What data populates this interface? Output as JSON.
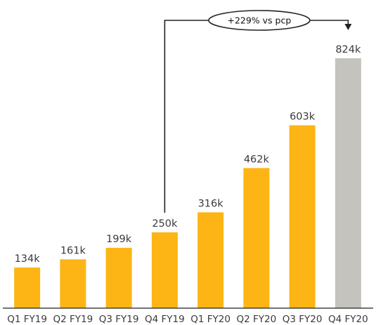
{
  "chart_data": {
    "type": "bar",
    "categories": [
      "Q1 FY19",
      "Q2 FY19",
      "Q3 FY19",
      "Q4 FY19",
      "Q1 FY20",
      "Q2 FY20",
      "Q3 FY20",
      "Q4 FY20"
    ],
    "values": [
      134,
      161,
      199,
      250,
      316,
      462,
      603,
      824
    ],
    "data_labels": [
      "134k",
      "161k",
      "199k",
      "250k",
      "316k",
      "462k",
      "603k",
      "824k"
    ],
    "bar_colors": [
      "#FDB515",
      "#FDB515",
      "#FDB515",
      "#FDB515",
      "#FDB515",
      "#FDB515",
      "#FDB515",
      "#C5C3BE"
    ],
    "annotation": {
      "text": "+229% vs pcp",
      "from_category": "Q4 FY19",
      "to_category": "Q4 FY20"
    },
    "title": "",
    "xlabel": "",
    "ylabel": "",
    "ylim": [
      0,
      824
    ],
    "grid": false,
    "legend": false
  }
}
